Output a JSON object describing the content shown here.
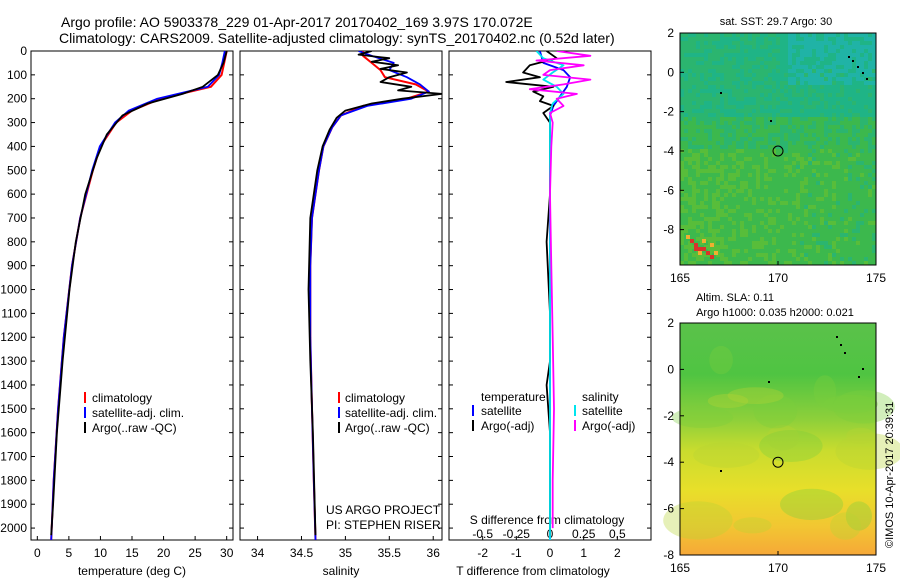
{
  "header": {
    "line1": "Argo profile: AO 5903378_229 01-Apr-2017 20170402_169 3.97S 170.072E",
    "line2": "Climatology: CARS2009. Satellite-adjusted climatology: synTS_20170402.nc (0.52d later)"
  },
  "colors": {
    "clim": "#ff0000",
    "sat": "#0000ff",
    "argo": "#000000",
    "sal_sat": "#00e5ee",
    "sal_argo": "#ff00ff"
  },
  "chart_data": [
    {
      "id": "temperature",
      "type": "line",
      "xlabel": "temperature (deg C)",
      "ylabel": "",
      "xlim": [
        -1,
        31
      ],
      "ylim": [
        2050,
        0
      ],
      "xticks": [
        "0",
        "5",
        "10",
        "15",
        "20",
        "25",
        "30"
      ],
      "yticks": [
        "0",
        "100",
        "200",
        "300",
        "400",
        "500",
        "600",
        "700",
        "800",
        "900",
        "1000",
        "1100",
        "1200",
        "1300",
        "1400",
        "1500",
        "1600",
        "1700",
        "1800",
        "1900",
        "2000"
      ],
      "legend": [
        "climatology",
        "satellite-adj. clim.",
        "Argo(..raw -QC)"
      ],
      "series": [
        {
          "name": "climatology",
          "depth": [
            0,
            50,
            100,
            150,
            200,
            250,
            300,
            400,
            500,
            700,
            900,
            1200,
            1500,
            1800,
            2050
          ],
          "values": [
            30,
            29.6,
            29.2,
            27.5,
            19.5,
            15,
            12.5,
            10,
            8.8,
            6.8,
            5.5,
            4.2,
            3.3,
            2.6,
            2.2
          ]
        },
        {
          "name": "satellite-adj. clim.",
          "depth": [
            0,
            50,
            100,
            150,
            200,
            250,
            300,
            400,
            500,
            700,
            900,
            1200,
            1500,
            1800,
            2050
          ],
          "values": [
            29.7,
            29.3,
            28.8,
            27,
            19,
            14.5,
            12.3,
            9.9,
            8.7,
            6.8,
            5.5,
            4.2,
            3.3,
            2.6,
            2.2
          ]
        },
        {
          "name": "Argo(..raw -QC)",
          "depth": [
            0,
            50,
            100,
            150,
            180,
            220,
            270,
            350,
            450,
            600,
            800,
            1000,
            1300,
            1600,
            1900,
            2030
          ],
          "values": [
            30,
            29.5,
            28.6,
            26.2,
            23,
            17.5,
            13.5,
            11,
            9.4,
            7.6,
            6.1,
            5.1,
            4,
            3.1,
            2.5,
            2.2
          ]
        }
      ]
    },
    {
      "id": "salinity",
      "type": "line",
      "xlabel": "salinity",
      "ylabel": "",
      "xlim": [
        33.8,
        36.1
      ],
      "ylim": [
        2050,
        0
      ],
      "xticks": [
        "34",
        "34.5",
        "35",
        "35.5",
        "36"
      ],
      "legend": [
        "climatology",
        "satellite-adj. clim.",
        "Argo(..raw -QC)"
      ],
      "series": [
        {
          "name": "climatology",
          "depth": [
            0,
            20,
            50,
            80,
            110,
            140,
            170,
            200,
            230,
            270,
            320,
            400,
            500,
            700,
            900,
            1200,
            1500,
            1800,
            2050
          ],
          "values": [
            35.2,
            35.2,
            35.3,
            35.4,
            35.45,
            35.8,
            35.95,
            35.7,
            35.2,
            34.95,
            34.85,
            34.75,
            34.7,
            34.62,
            34.6,
            34.6,
            34.62,
            34.64,
            34.66
          ]
        },
        {
          "name": "satellite-adj. clim.",
          "depth": [
            0,
            20,
            50,
            80,
            110,
            140,
            170,
            200,
            230,
            270,
            320,
            400,
            500,
            700,
            900,
            1200,
            1500,
            1800,
            2050
          ],
          "values": [
            35.15,
            35.3,
            35.55,
            35.5,
            35.7,
            35.85,
            35.95,
            35.75,
            35.25,
            34.95,
            34.85,
            34.75,
            34.7,
            34.62,
            34.6,
            34.6,
            34.62,
            34.64,
            34.66
          ]
        },
        {
          "name": "Argo(..raw -QC)",
          "depth": [
            0,
            15,
            30,
            45,
            60,
            75,
            90,
            110,
            130,
            150,
            165,
            180,
            200,
            220,
            250,
            280,
            330,
            400,
            500,
            700,
            1000,
            1300,
            1600,
            1900,
            2030
          ],
          "values": [
            35.3,
            35.15,
            35.5,
            35.3,
            35.6,
            35.4,
            35.7,
            35.5,
            35.4,
            35.75,
            35.6,
            36.1,
            35.65,
            35.3,
            35.0,
            34.9,
            34.82,
            34.74,
            34.68,
            34.6,
            34.58,
            34.6,
            34.63,
            34.65,
            34.66
          ]
        }
      ],
      "annotations": [
        "US ARGO PROJECT",
        "PI: STEPHEN RISER"
      ]
    },
    {
      "id": "difference",
      "type": "line",
      "xlabel": "T difference from climatology",
      "x2label": "S difference from climatology",
      "xlim": [
        -3,
        3
      ],
      "x2lim": [
        -0.75,
        0.75
      ],
      "ylim": [
        2050,
        0
      ],
      "xticks": [
        "-2",
        "-1",
        "0",
        "1",
        "2"
      ],
      "x2ticks": [
        "-0.5",
        "-0.25",
        "0",
        "0.25",
        "0.5"
      ],
      "legend_titles": [
        "temperature",
        "salinity"
      ],
      "legend": [
        "satellite",
        "Argo(-adj)",
        "satellite",
        "Argo(-adj)"
      ],
      "series": [
        {
          "name": "temperature satellite",
          "depth": [
            0,
            50,
            80,
            110,
            150,
            190,
            230,
            270,
            330,
            400,
            500,
            700,
            1000,
            1300,
            1600,
            1900,
            2050
          ],
          "values": [
            -0.3,
            -0.2,
            0.4,
            0.6,
            0.5,
            0.3,
            0.1,
            0.0,
            0.0,
            0.0,
            0.0,
            0.0,
            0.0,
            0.0,
            0.0,
            0.0,
            0.0
          ]
        },
        {
          "name": "temperature Argo(-adj)",
          "depth": [
            0,
            30,
            60,
            90,
            110,
            130,
            150,
            170,
            190,
            210,
            230,
            260,
            300,
            400,
            600,
            800,
            1100,
            1300,
            1400,
            1600,
            1900,
            2030
          ],
          "values": [
            -0.1,
            0.2,
            -0.6,
            -0.8,
            -0.3,
            -1.3,
            0.1,
            -0.5,
            -0.2,
            -0.3,
            0.1,
            -0.2,
            0.0,
            0.0,
            0.0,
            -0.1,
            0.0,
            0.0,
            -0.1,
            0.0,
            0.0,
            0.0
          ]
        },
        {
          "name": "salinity satellite",
          "depth": [
            0,
            30,
            60,
            90,
            120,
            150,
            180,
            220,
            260,
            300,
            400,
            600,
            900,
            1200,
            1500,
            1800,
            2050
          ],
          "values": [
            -0.1,
            -0.05,
            0.1,
            0.02,
            -0.05,
            0.05,
            0.1,
            0.02,
            0.0,
            0.0,
            0.0,
            0.0,
            0.0,
            0.0,
            0.0,
            0.0,
            0.0
          ]
        },
        {
          "name": "salinity Argo(-adj)",
          "depth": [
            0,
            20,
            40,
            60,
            80,
            100,
            120,
            140,
            160,
            180,
            200,
            230,
            260,
            300,
            400,
            600,
            900,
            1200,
            1500,
            1800,
            2000
          ],
          "values": [
            0.05,
            0.3,
            -0.1,
            0.25,
            0.0,
            -0.05,
            0.3,
            0.1,
            -0.15,
            0.2,
            0.05,
            0.1,
            0.0,
            0.02,
            0.01,
            0.0,
            0.01,
            0.02,
            0.03,
            0.02,
            0.02
          ]
        }
      ]
    },
    {
      "id": "sst_map",
      "type": "heatmap",
      "title": "sat. SST: 29.7 Argo: 30",
      "xlim": [
        165,
        175
      ],
      "ylim": [
        -9.8,
        2
      ],
      "xticks": [
        "165",
        "170",
        "175"
      ],
      "yticks": [
        "2",
        "0",
        "-2",
        "-4",
        "-6",
        "-8"
      ],
      "argo_position": {
        "lon": 170,
        "lat": -4
      }
    },
    {
      "id": "sla_map",
      "type": "heatmap",
      "title": "Altim. SLA: 0.11",
      "subtitle": "Argo h1000: 0.035 h2000: 0.021",
      "xlim": [
        165,
        175
      ],
      "ylim": [
        -8,
        2
      ],
      "xticks": [
        "165",
        "170",
        "175"
      ],
      "yticks": [
        "2",
        "0",
        "-2",
        "-4",
        "-6",
        "-8"
      ],
      "argo_position": {
        "lon": 170,
        "lat": -4
      }
    }
  ],
  "stamp": "©IMOS 10-Apr-2017 20:39:31"
}
